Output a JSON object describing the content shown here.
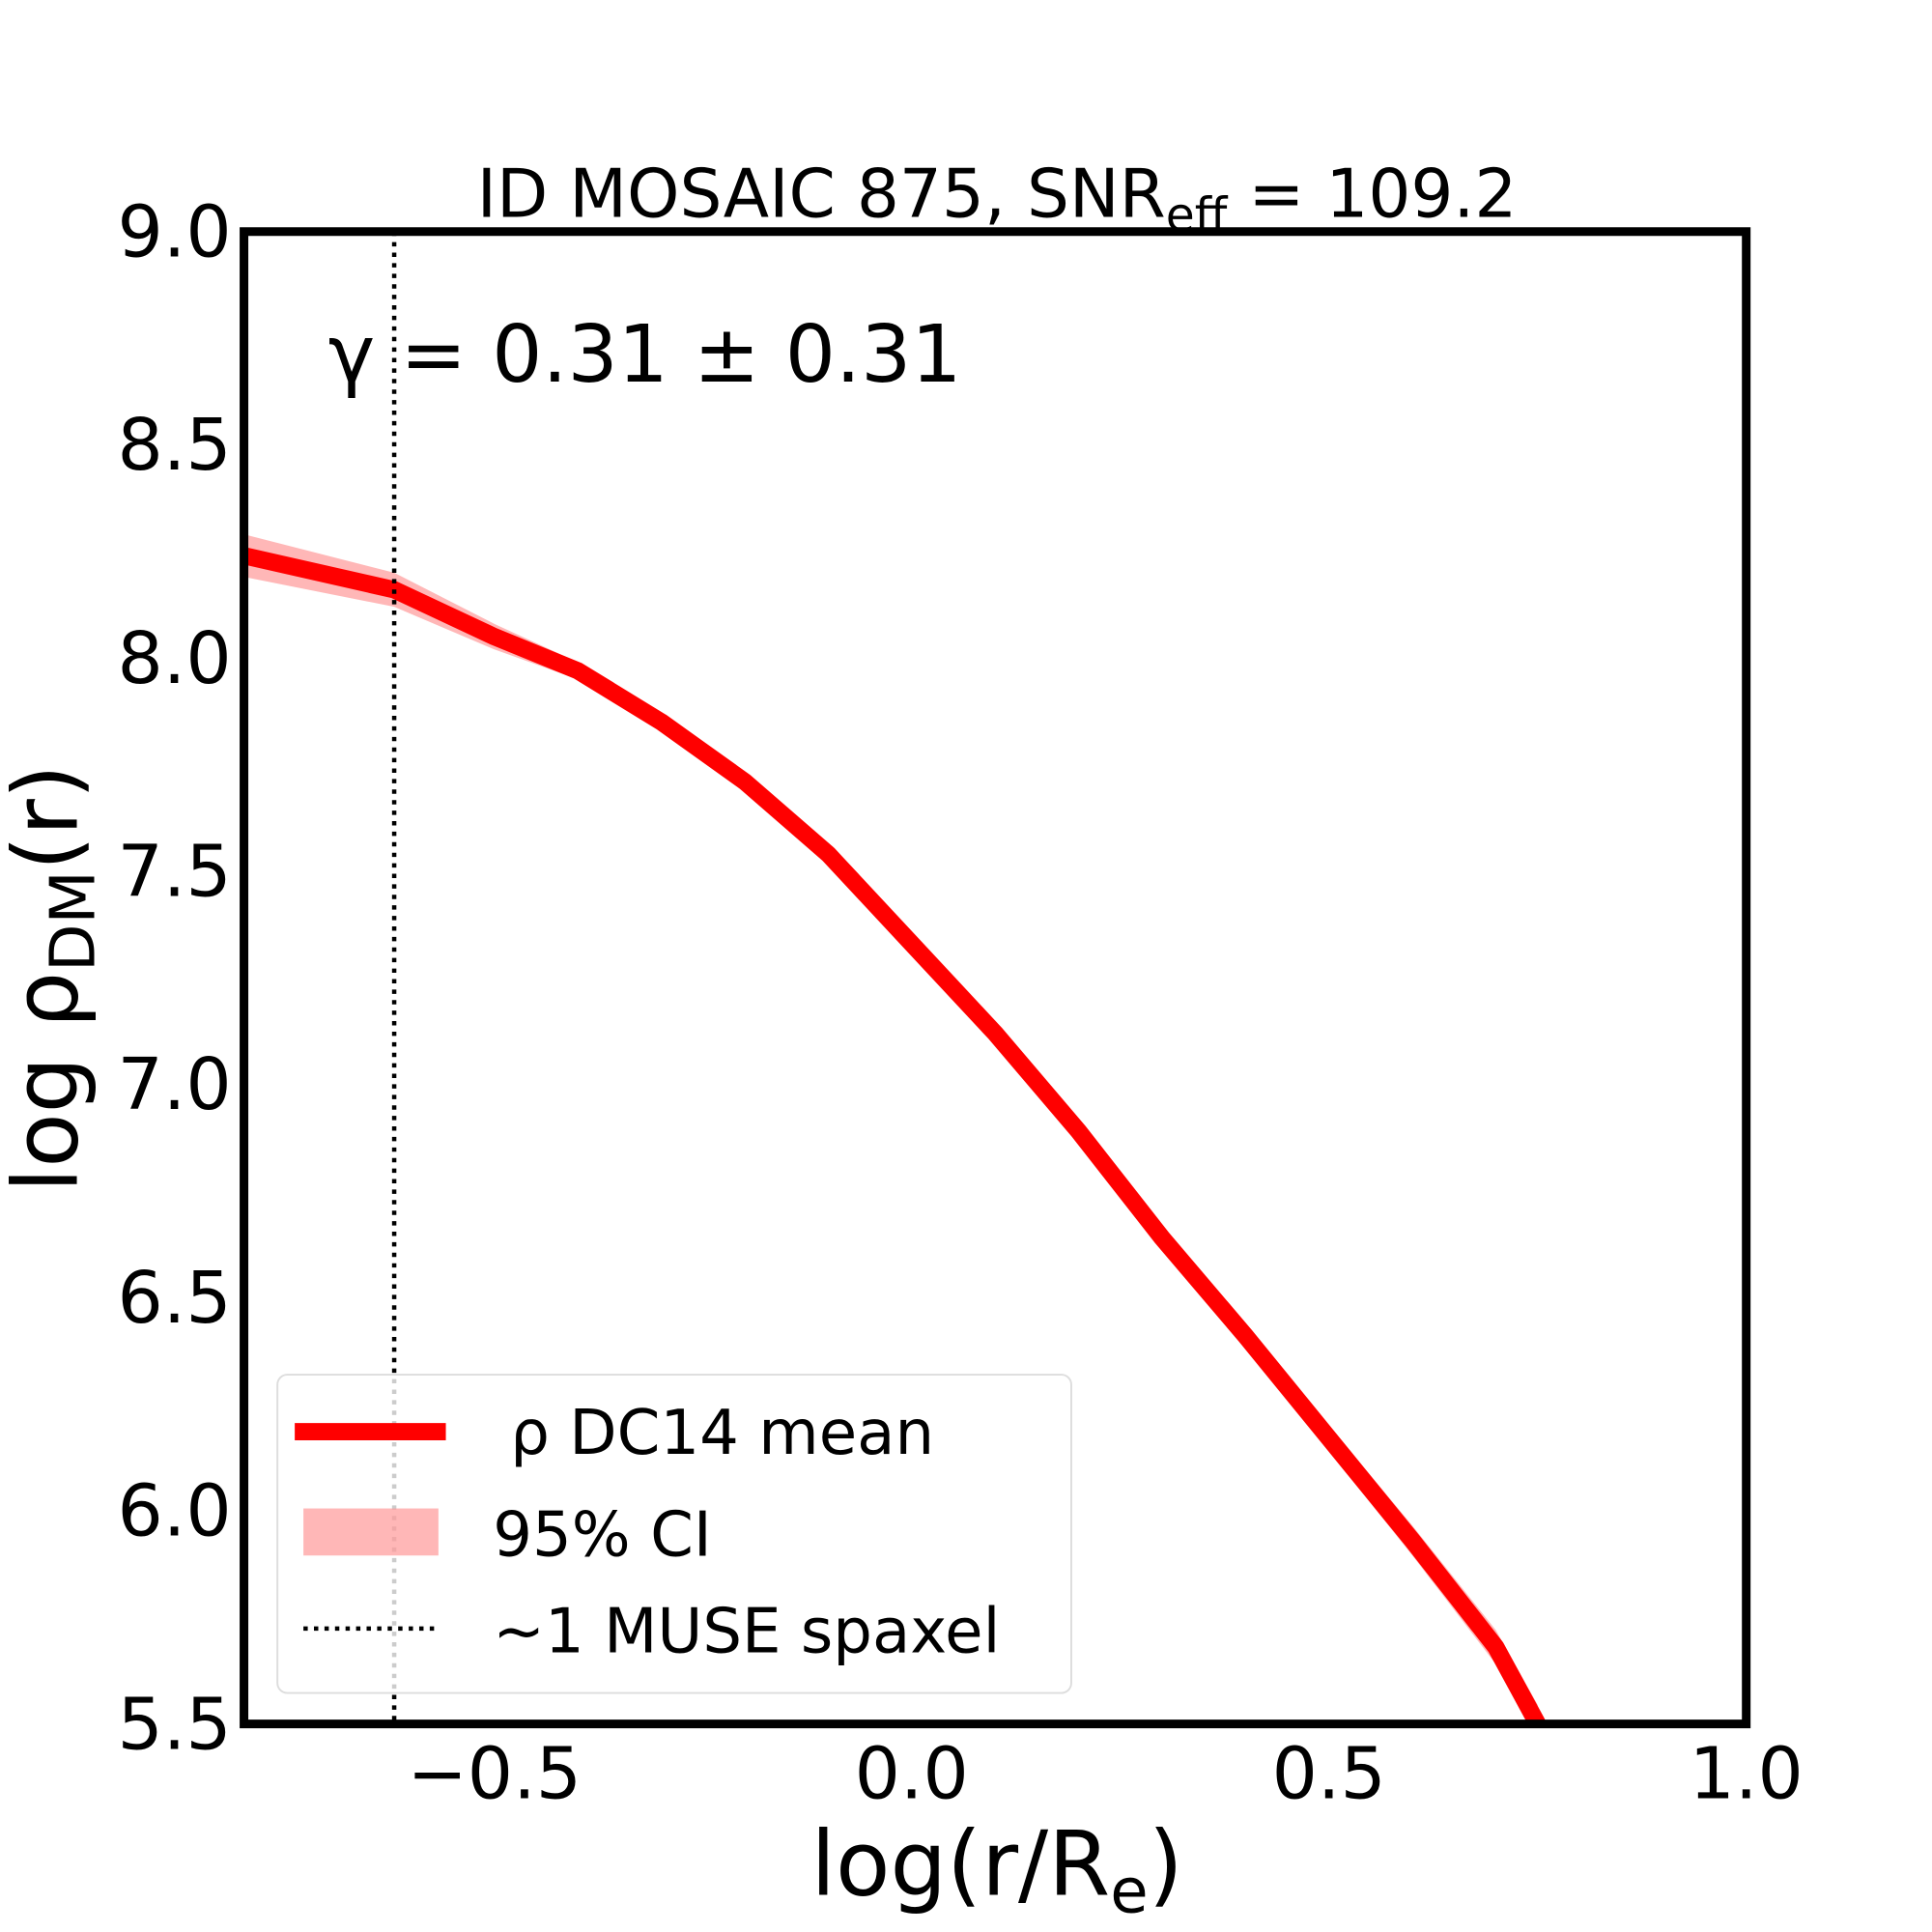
{
  "chart_data": {
    "type": "line",
    "title": "ID MOSAIC 875, SNR",
    "title_sub": "eff",
    "title_tail": " = 109.2",
    "annotation": "γ = 0.31 ± 0.31",
    "xlabel": "log(r/R",
    "xlabel_sub": "e",
    "xlabel_tail": ")",
    "ylabel": "log ρ",
    "ylabel_sub": "DM",
    "ylabel_tail": "(r)",
    "xlim": [
      -0.8,
      1.0
    ],
    "ylim": [
      5.5,
      9.0
    ],
    "xticks": [
      "−0.5",
      "0.0",
      "0.5",
      "1.0"
    ],
    "xtick_values": [
      -0.5,
      0.0,
      0.5,
      1.0
    ],
    "yticks": [
      "5.5",
      "6.0",
      "6.5",
      "7.0",
      "7.5",
      "8.0",
      "8.5",
      "9.0"
    ],
    "ytick_values": [
      5.5,
      6.0,
      6.5,
      7.0,
      7.5,
      8.0,
      8.5,
      9.0
    ],
    "grid": false,
    "legend_placement": "lower-left",
    "series": [
      {
        "name": "ρ DC14 mean",
        "color": "#ff0000",
        "x": [
          -0.8,
          -0.62,
          -0.5,
          -0.4,
          -0.3,
          -0.2,
          -0.1,
          0.0,
          0.1,
          0.2,
          0.3,
          0.4,
          0.5,
          0.6,
          0.7,
          0.75
        ],
        "y": [
          8.24,
          8.16,
          8.05,
          7.97,
          7.85,
          7.71,
          7.54,
          7.33,
          7.12,
          6.89,
          6.64,
          6.41,
          6.17,
          5.93,
          5.68,
          5.5
        ]
      }
    ],
    "band": {
      "name": "95% CI",
      "color": "#ff9999",
      "half_width": [
        0.05,
        0.04,
        0.03,
        0.02,
        0.02,
        0.02,
        0.015,
        0.015,
        0.015,
        0.02,
        0.02,
        0.025,
        0.03,
        0.035,
        0.04,
        0.045
      ]
    },
    "vline": {
      "name": "~1 MUSE spaxel",
      "x": -0.62,
      "style": "dotted"
    }
  }
}
